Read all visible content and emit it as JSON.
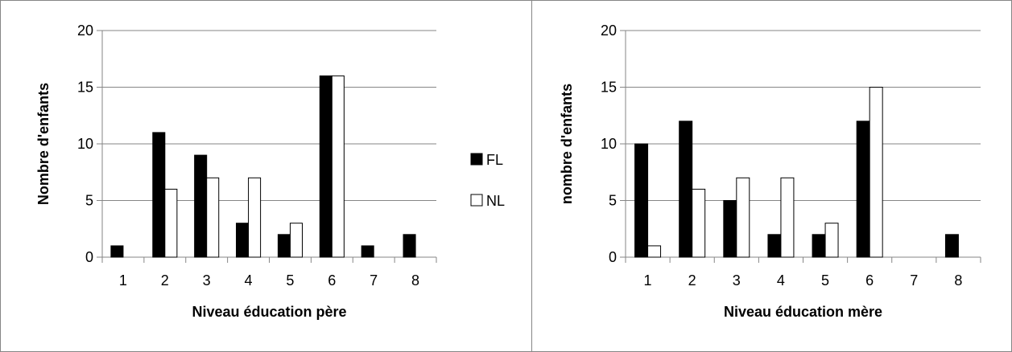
{
  "chart_data": [
    {
      "type": "bar",
      "categories": [
        "1",
        "2",
        "3",
        "4",
        "5",
        "6",
        "7",
        "8"
      ],
      "series": [
        {
          "name": "FL",
          "values": [
            1,
            11,
            9,
            3,
            2,
            16,
            1,
            2
          ],
          "color": "#000000"
        },
        {
          "name": "NL",
          "values": [
            0,
            6,
            7,
            7,
            3,
            16,
            0,
            0
          ],
          "color": "#ffffff"
        }
      ],
      "xlabel": "Niveau éducation père",
      "ylabel": "Nombre d'enfants",
      "yticks": [
        "0",
        "5",
        "10",
        "15",
        "20"
      ],
      "ylim": [
        0,
        20
      ],
      "grid": true,
      "legend": "right"
    },
    {
      "type": "bar",
      "categories": [
        "1",
        "2",
        "3",
        "4",
        "5",
        "6",
        "7",
        "8"
      ],
      "series": [
        {
          "name": "FL",
          "values": [
            10,
            12,
            5,
            2,
            2,
            12,
            0,
            2
          ],
          "color": "#000000"
        },
        {
          "name": "NL",
          "values": [
            1,
            6,
            7,
            7,
            3,
            15,
            0,
            0
          ],
          "color": "#ffffff"
        }
      ],
      "xlabel": "Niveau éducation mère",
      "ylabel": "nombre d'enfants",
      "yticks": [
        "0",
        "5",
        "10",
        "15",
        "20"
      ],
      "ylim": [
        0,
        20
      ],
      "grid": true,
      "legend": "none"
    }
  ]
}
